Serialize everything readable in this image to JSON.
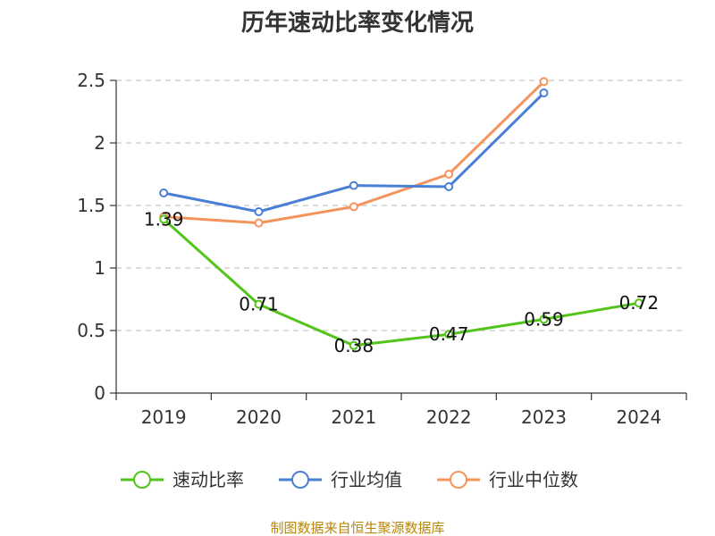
{
  "chart_data": {
    "type": "line",
    "title": "历年速动比率变化情况",
    "categories": [
      "2019",
      "2020",
      "2021",
      "2022",
      "2023",
      "2024"
    ],
    "ylim": [
      0,
      2.5
    ],
    "yticks": [
      0,
      0.5,
      1,
      1.5,
      2,
      2.5
    ],
    "ytick_labels": [
      "0",
      "0.5",
      "1",
      "1.5",
      "2",
      "2.5"
    ],
    "grid": true,
    "legend_position": "bottom",
    "series": [
      {
        "name": "速动比率",
        "color": "#52c41a",
        "values": [
          1.39,
          0.71,
          0.38,
          0.47,
          0.59,
          0.72
        ],
        "labels": [
          "1.39",
          "0.71",
          "0.38",
          "0.47",
          "0.59",
          "0.72"
        ]
      },
      {
        "name": "行业均值",
        "color": "#4a7fd6",
        "values": [
          1.6,
          1.45,
          1.66,
          1.65,
          2.4,
          null
        ]
      },
      {
        "name": "行业中位数",
        "color": "#f5935c",
        "values": [
          1.41,
          1.36,
          1.49,
          1.75,
          2.49,
          null
        ]
      }
    ]
  },
  "source_text": "制图数据来自恒生聚源数据库"
}
